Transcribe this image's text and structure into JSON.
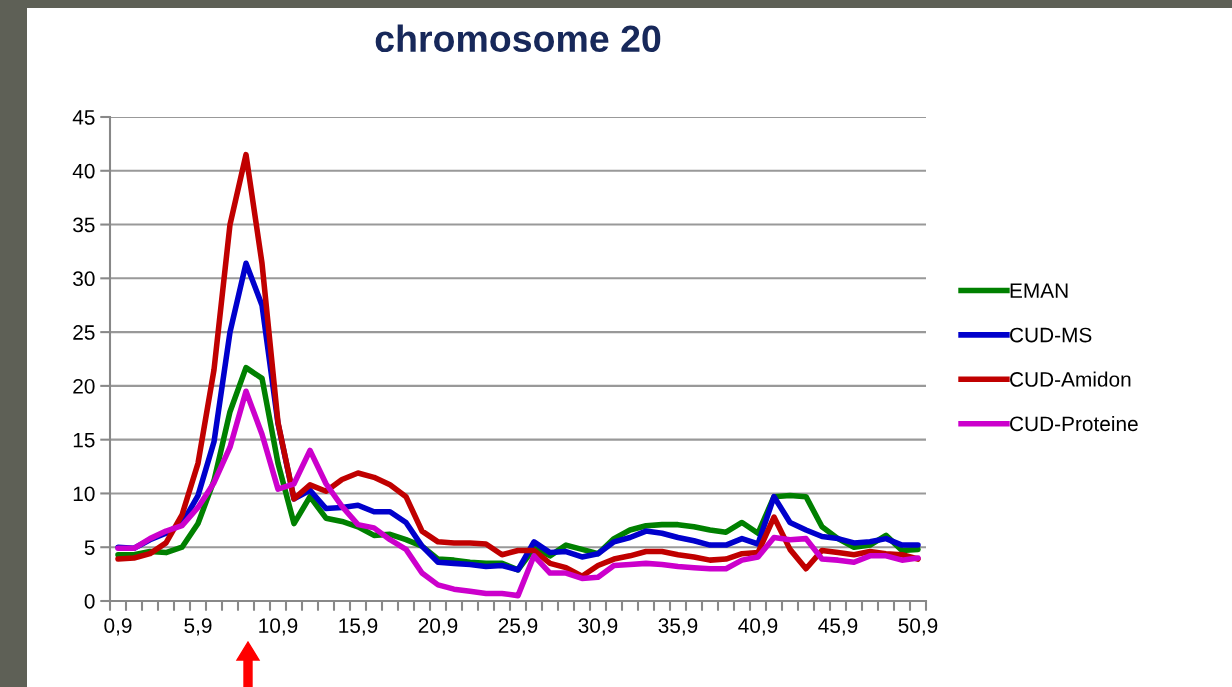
{
  "chart_data": {
    "type": "line",
    "title": "chromosome 20",
    "categories": [
      "0,9",
      null,
      null,
      null,
      null,
      "5,9",
      null,
      null,
      null,
      null,
      "10,9",
      null,
      null,
      null,
      null,
      "15,9",
      null,
      null,
      null,
      null,
      "20,9",
      null,
      null,
      null,
      null,
      "25,9",
      null,
      null,
      null,
      null,
      "30,9",
      null,
      null,
      null,
      null,
      "35,9",
      null,
      null,
      null,
      null,
      "40,9",
      null,
      null,
      null,
      null,
      "45,9",
      null,
      null,
      null,
      null,
      "50,9"
    ],
    "ylim": [
      0,
      45
    ],
    "yticks": [
      0,
      5,
      10,
      15,
      20,
      25,
      30,
      35,
      40,
      45
    ],
    "grid": "y",
    "legend": "right",
    "marker": "none",
    "line_style": "solid",
    "series": [
      {
        "name": "EMAN",
        "color": "#008000",
        "values": [
          4.3,
          4.3,
          4.6,
          4.5,
          5.0,
          7.2,
          11.2,
          17.6,
          21.7,
          20.7,
          12.8,
          7.2,
          9.7,
          7.7,
          7.4,
          6.9,
          6.1,
          6.2,
          5.7,
          5.1,
          3.9,
          3.8,
          3.6,
          3.5,
          3.5,
          2.9,
          4.9,
          4.2,
          5.2,
          4.8,
          4.4,
          5.8,
          6.6,
          7.0,
          7.1,
          7.1,
          6.9,
          6.6,
          6.4,
          7.3,
          6.3,
          9.7,
          9.8,
          9.7,
          6.9,
          5.8,
          5.0,
          5.2,
          6.1,
          4.7,
          4.8
        ]
      },
      {
        "name": "CUD-MS",
        "color": "#0000cc",
        "values": [
          5.0,
          4.9,
          5.7,
          6.3,
          7.2,
          9.8,
          14.8,
          25.0,
          31.4,
          27.5,
          16.5,
          9.5,
          10.3,
          8.6,
          8.7,
          8.9,
          8.3,
          8.3,
          7.3,
          5.1,
          3.6,
          3.5,
          3.4,
          3.2,
          3.3,
          2.9,
          5.5,
          4.5,
          4.6,
          4.1,
          4.4,
          5.5,
          5.9,
          6.5,
          6.3,
          5.9,
          5.6,
          5.2,
          5.2,
          5.8,
          5.3,
          9.7,
          7.3,
          6.6,
          6.0,
          5.8,
          5.4,
          5.5,
          5.8,
          5.2,
          5.2
        ]
      },
      {
        "name": "CUD-Amidon",
        "color": "#c00000",
        "values": [
          3.9,
          4.0,
          4.4,
          5.4,
          8.0,
          12.8,
          21.5,
          35.0,
          41.5,
          31.4,
          16.6,
          9.5,
          10.8,
          10.2,
          11.3,
          11.9,
          11.5,
          10.8,
          9.7,
          6.5,
          5.5,
          5.4,
          5.4,
          5.3,
          4.3,
          4.7,
          4.7,
          3.5,
          3.1,
          2.3,
          3.3,
          3.9,
          4.2,
          4.6,
          4.6,
          4.3,
          4.1,
          3.8,
          3.9,
          4.4,
          4.5,
          7.8,
          4.8,
          3.0,
          4.7,
          4.5,
          4.3,
          4.6,
          4.4,
          4.3,
          3.9
        ]
      },
      {
        "name": "CUD-Proteine",
        "color": "#cc00cc",
        "values": [
          4.9,
          4.9,
          5.8,
          6.5,
          7.0,
          8.7,
          11.0,
          14.3,
          19.5,
          15.5,
          10.4,
          10.9,
          14.0,
          10.9,
          8.8,
          7.1,
          6.8,
          5.7,
          4.8,
          2.6,
          1.5,
          1.1,
          0.9,
          0.7,
          0.7,
          0.5,
          4.2,
          2.6,
          2.6,
          2.1,
          2.2,
          3.3,
          3.4,
          3.5,
          3.4,
          3.2,
          3.1,
          3.0,
          3.0,
          3.8,
          4.1,
          5.9,
          5.7,
          5.8,
          3.9,
          3.8,
          3.6,
          4.2,
          4.2,
          3.8,
          4.0
        ]
      }
    ]
  }
}
